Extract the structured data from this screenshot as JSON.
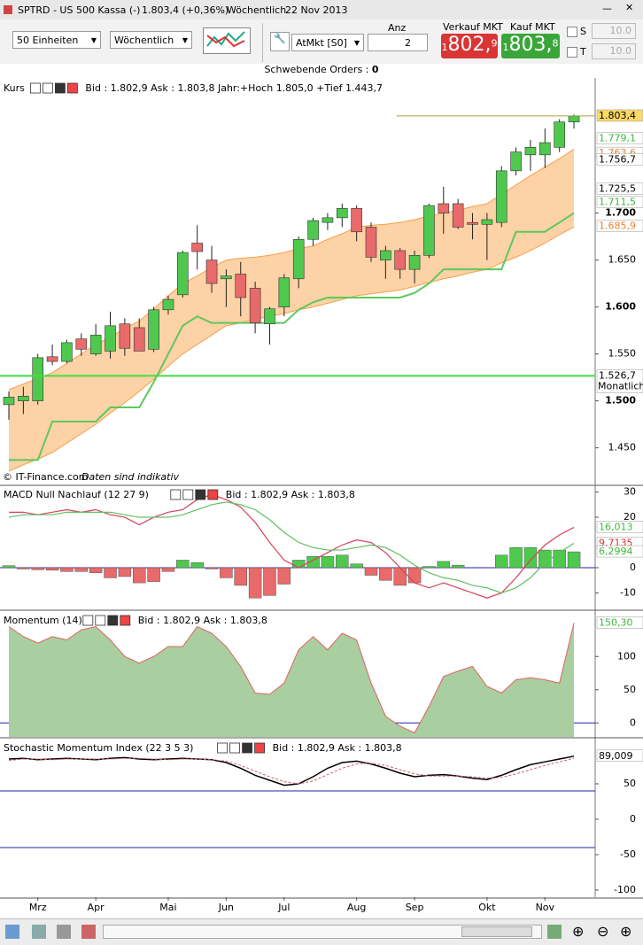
{
  "window": {
    "symbol": "SPTRD - US 500 Kassa (-)",
    "price": "1.803,4 (+0,36%)",
    "interval": "Wöchentlich",
    "date": "22 Nov 2013"
  },
  "toolbar": {
    "units": "50 Einheiten",
    "interval": "Wöchentlich",
    "order_type": "AtMkt [S0]",
    "quantity_label": "Anz",
    "quantity": 2,
    "sell": {
      "label": "Verkauf MKT",
      "lead": "1",
      "main": "802,",
      "tail": "9"
    },
    "buy": {
      "label": "Kauf MKT",
      "lead": "1",
      "main": "803,",
      "tail": "8"
    },
    "stop": {
      "label": "S",
      "value": "10.0"
    },
    "target": {
      "label": "T",
      "value": "10.0"
    }
  },
  "pending_orders": {
    "label": "Schwebende Orders : ",
    "count": 0
  },
  "chart_data": [
    {
      "type": "candlestick",
      "title": "Kurs",
      "info": "Bid : 1.802,9 Ask : 1.803,8 Jahr:+Hoch 1.805,0 +Tief 1.443,7",
      "footer": "© IT-Finance.com",
      "footer_note": "Daten sind indikativ",
      "ylim": [
        1411,
        1842
      ],
      "yticks": [
        {
          "value": 1450,
          "label": "1.450"
        },
        {
          "value": 1500,
          "label": "1.500"
        },
        {
          "value": 1550,
          "label": "1.550"
        },
        {
          "value": 1600,
          "label": "1.600"
        },
        {
          "value": 1650,
          "label": "1.650"
        },
        {
          "value": 1700,
          "label": "1.700"
        }
      ],
      "up_color": "#4ec94e",
      "down_color": "#e86a6a",
      "open": [
        1496,
        1500,
        1500,
        1547,
        1542,
        1566,
        1550,
        1553,
        1582,
        1578,
        1555,
        1597,
        1613,
        1668,
        1650,
        1630,
        1635,
        1620,
        1582,
        1600,
        1630,
        1672,
        1690,
        1695,
        1705,
        1685,
        1650,
        1660,
        1640,
        1655,
        1710,
        1710,
        1690,
        1688,
        1690,
        1745,
        1762,
        1762,
        1770,
        1797
      ],
      "high": [
        1510,
        1515,
        1550,
        1560,
        1565,
        1572,
        1582,
        1595,
        1588,
        1588,
        1600,
        1612,
        1660,
        1687,
        1665,
        1640,
        1648,
        1627,
        1600,
        1635,
        1675,
        1695,
        1700,
        1710,
        1708,
        1690,
        1665,
        1663,
        1660,
        1710,
        1728,
        1715,
        1700,
        1700,
        1750,
        1770,
        1778,
        1790,
        1800,
        1805
      ],
      "low": [
        1480,
        1486,
        1496,
        1538,
        1540,
        1548,
        1548,
        1545,
        1548,
        1555,
        1552,
        1592,
        1610,
        1640,
        1615,
        1600,
        1590,
        1572,
        1560,
        1590,
        1620,
        1665,
        1682,
        1685,
        1670,
        1648,
        1630,
        1630,
        1625,
        1652,
        1678,
        1683,
        1672,
        1650,
        1685,
        1740,
        1745,
        1748,
        1765,
        1790
      ],
      "close": [
        1504,
        1505,
        1546,
        1542,
        1562,
        1555,
        1570,
        1580,
        1556,
        1553,
        1597,
        1608,
        1658,
        1659,
        1625,
        1633,
        1610,
        1583,
        1598,
        1631,
        1672,
        1692,
        1695,
        1705,
        1680,
        1653,
        1660,
        1640,
        1655,
        1708,
        1700,
        1685,
        1688,
        1693,
        1745,
        1765,
        1770,
        1775,
        1797,
        1803.4
      ],
      "band": {
        "color": "#fdd2a6",
        "line_color": "#f3a04a",
        "upper": [
          1512,
          1518,
          1524,
          1530,
          1540,
          1550,
          1560,
          1568,
          1577,
          1585,
          1598,
          1612,
          1625,
          1633,
          1642,
          1650,
          1652,
          1653,
          1655,
          1658,
          1662,
          1665,
          1672,
          1678,
          1685,
          1687,
          1688,
          1690,
          1693,
          1697,
          1700,
          1703,
          1707,
          1710,
          1720,
          1730,
          1740,
          1749,
          1758,
          1768
        ],
        "lower": [
          1425,
          1432,
          1438,
          1445,
          1455,
          1465,
          1475,
          1487,
          1498,
          1510,
          1523,
          1537,
          1550,
          1560,
          1570,
          1580,
          1583,
          1587,
          1590,
          1593,
          1597,
          1600,
          1604,
          1608,
          1612,
          1614,
          1616,
          1618,
          1622,
          1626,
          1630,
          1633,
          1637,
          1640,
          1647,
          1653,
          1660,
          1668,
          1677,
          1685
        ]
      },
      "series": [
        {
          "color": "#5cc85c",
          "values": [
            1437,
            1437,
            1437,
            1478,
            1478,
            1478,
            1478,
            1493,
            1493,
            1493,
            1520,
            1550,
            1580,
            1590,
            1583,
            1583,
            1583,
            1583,
            1583,
            1583,
            1597,
            1605,
            1610,
            1610,
            1610,
            1610,
            1610,
            1610,
            1615,
            1625,
            1640,
            1640,
            1640,
            1640,
            1640,
            1680,
            1680,
            1680,
            1690,
            1700
          ]
        }
      ],
      "tags": [
        {
          "value": 1803.4,
          "label": "1.803,4",
          "bg": "#ffd966",
          "fg": "#000",
          "line_color": "#a0a040"
        },
        {
          "value": 1779.1,
          "label": "1.779,1",
          "bg": "#ffffff",
          "fg": "#3cb83c"
        },
        {
          "value": 1763.6,
          "label": "1.763,6",
          "bg": "#ffffff",
          "fg": "#f08030"
        },
        {
          "value": 1756.7,
          "label": "1.756,7",
          "bg": "#ffffff",
          "fg": "#000"
        },
        {
          "value": 1725.5,
          "label": "1.725,5",
          "bg": "#ffffff",
          "fg": "#000"
        },
        {
          "value": 1711.5,
          "label": "1.711,5",
          "bg": "#ffffff",
          "fg": "#3cb83c"
        },
        {
          "value": 1685.9,
          "label": "1.685,9",
          "bg": "#ffffff",
          "fg": "#f08030"
        },
        {
          "value": 1526.7,
          "label": "1.526,7",
          "note": "Monatlich",
          "bg": "#ffffff",
          "fg": "#000",
          "line_color": "#44dd44"
        }
      ]
    },
    {
      "type": "macd",
      "title": "MACD Null Nachlauf (12 27 9)",
      "info": "Bid : 1.802,9 Ask : 1.803,8",
      "ylim": [
        -16.5,
        32.3
      ],
      "yticks": [
        30,
        20,
        0,
        -10
      ],
      "levels": [
        0
      ],
      "level_color": "#2222aa",
      "histogram": {
        "up_color": "#4ec94e",
        "down_color": "#e86a6a",
        "values": [
          0.8,
          -0.5,
          -0.8,
          -1,
          -1.5,
          -1.5,
          -2,
          -4,
          -3.5,
          -6,
          -5.5,
          -1.5,
          3,
          2,
          -0.5,
          -4,
          -7,
          -12,
          -11,
          -6.5,
          3,
          4.5,
          4.5,
          5,
          1.5,
          -3,
          -5,
          -7,
          -6,
          0.5,
          2.5,
          1,
          0,
          0,
          5,
          8,
          8,
          7,
          7,
          6.3
        ]
      },
      "series": [
        {
          "color": "#d8405a",
          "values": [
            22,
            22,
            21,
            22,
            23,
            22,
            23,
            21,
            20,
            17,
            20,
            22,
            23,
            27,
            29,
            27,
            24,
            18,
            10,
            3,
            0,
            3,
            6,
            9,
            11,
            10,
            6,
            0,
            -6,
            -8,
            -6,
            -8,
            -10,
            -12,
            -10,
            -4,
            3,
            9,
            13,
            16
          ]
        },
        {
          "color": "#60c060",
          "values": [
            20,
            21,
            21,
            21,
            22,
            22,
            22,
            22,
            21,
            20,
            20,
            20,
            21,
            23,
            25,
            26,
            25,
            23,
            19,
            14,
            10,
            8,
            7,
            7,
            8,
            9,
            8,
            5,
            1,
            -2,
            -4,
            -5,
            -7,
            -8,
            -10,
            -8,
            -4,
            2,
            6,
            9.7
          ]
        }
      ],
      "tags": [
        {
          "value": 16.013,
          "label": "16,013",
          "bg": "#ffffff",
          "fg": "#3cb83c"
        },
        {
          "value": 9.7135,
          "label": "9,7135",
          "bg": "#ffffff",
          "fg": "#e03030"
        },
        {
          "value": 6.2994,
          "label": "6,2994",
          "bg": "#ffffff",
          "fg": "#3cb83c"
        }
      ]
    },
    {
      "type": "area",
      "title": "Momentum (14)",
      "info": "Bid : 1.802,9 Ask : 1.803,8",
      "ylim": [
        -21,
        167
      ],
      "yticks": [
        100,
        50,
        0
      ],
      "levels": [
        0
      ],
      "level_color": "#2222aa",
      "series": [
        {
          "color": "#a9cfa0",
          "line_color": "#e06060",
          "values": [
            145,
            130,
            120,
            130,
            125,
            140,
            145,
            125,
            100,
            90,
            100,
            115,
            115,
            145,
            135,
            115,
            85,
            45,
            43,
            60,
            110,
            130,
            110,
            135,
            125,
            60,
            10,
            -5,
            -15,
            25,
            70,
            78,
            85,
            55,
            45,
            65,
            68,
            65,
            60,
            150.3
          ]
        }
      ],
      "tags": [
        {
          "value": 150.3,
          "label": "150,30",
          "bg": "#ffffff",
          "fg": "#3cb83c"
        }
      ]
    },
    {
      "type": "line",
      "title": "Stochastic Momentum Index (22 3 5 3)",
      "info": "Bid : 1.802,9 Ask : 1.803,8",
      "ylim": [
        -110,
        112.5
      ],
      "yticks": [
        50,
        0,
        -50,
        -100
      ],
      "levels": [
        40,
        -40
      ],
      "level_color": "#2222aa",
      "series": [
        {
          "color": "#000000",
          "values": [
            85,
            86,
            84,
            85,
            86,
            85,
            84,
            86,
            87,
            85,
            84,
            85,
            86,
            85,
            84,
            80,
            72,
            62,
            55,
            48,
            50,
            60,
            72,
            80,
            82,
            78,
            72,
            65,
            60,
            62,
            63,
            61,
            58,
            56,
            62,
            70,
            77,
            81,
            85,
            89
          ]
        },
        {
          "color": "#d06070",
          "dash": true,
          "values": [
            83,
            85,
            85,
            84,
            85,
            85,
            85,
            85,
            86,
            86,
            85,
            84,
            85,
            85,
            84,
            82,
            76,
            68,
            60,
            53,
            50,
            54,
            63,
            72,
            78,
            79,
            76,
            70,
            64,
            61,
            61,
            61,
            60,
            58,
            59,
            64,
            70,
            76,
            81,
            86
          ]
        }
      ],
      "tags": [
        {
          "value": 89.009,
          "label": "89,009",
          "bg": "#ffffff",
          "fg": "#000"
        }
      ]
    }
  ],
  "x_axis": {
    "labels": [
      null,
      null,
      "Mrz",
      null,
      null,
      null,
      "Apr",
      null,
      null,
      null,
      null,
      "Mai",
      null,
      null,
      null,
      "Jun",
      null,
      null,
      null,
      "Jul",
      null,
      null,
      null,
      null,
      "Aug",
      null,
      null,
      null,
      "Sep",
      null,
      null,
      null,
      null,
      "Okt",
      null,
      null,
      null,
      "Nov",
      null,
      null
    ]
  }
}
